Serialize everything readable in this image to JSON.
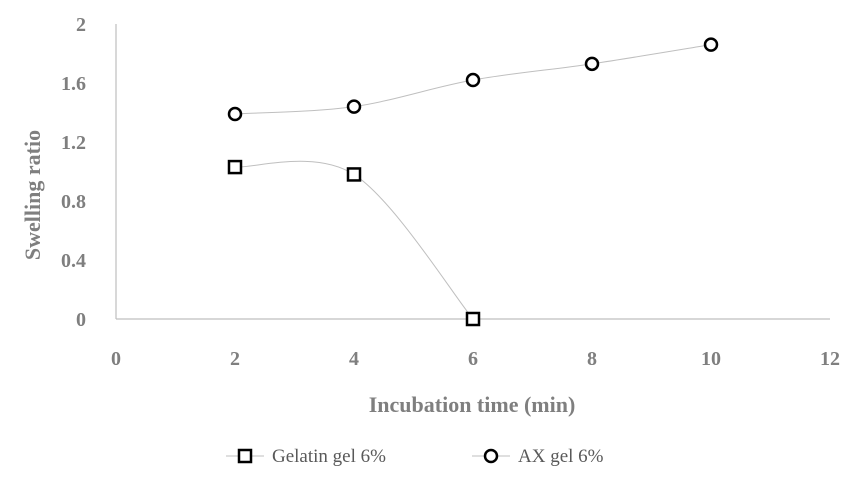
{
  "chart_data": {
    "type": "scatter",
    "xlabel": "Incubation time (min)",
    "ylabel": "Swelling ratio",
    "xlim": [
      0,
      12
    ],
    "ylim": [
      0,
      2
    ],
    "xticks": [
      0,
      2,
      4,
      6,
      8,
      10,
      12
    ],
    "yticks": [
      0,
      0.4,
      0.8,
      1.2,
      1.6,
      2
    ],
    "xtick_labels": [
      "0",
      "2",
      "4",
      "6",
      "8",
      "10",
      "12"
    ],
    "ytick_labels": [
      "0",
      "0.4",
      "0.8",
      "1.2",
      "1.6",
      "2"
    ],
    "grid": false,
    "legend_position": "bottom",
    "line_style": "smooth",
    "series": [
      {
        "name": "Gelatin gel 6%",
        "marker": "square",
        "x": [
          2,
          4,
          6
        ],
        "y": [
          1.03,
          0.98,
          0
        ]
      },
      {
        "name": "AX gel 6%",
        "marker": "circle",
        "x": [
          2,
          4,
          6,
          8,
          10
        ],
        "y": [
          1.39,
          1.44,
          1.62,
          1.73,
          1.86
        ]
      }
    ],
    "colors": {
      "marker": "#000000",
      "line": "#bfbfbf",
      "axis": "#bfbfbf",
      "text": "#7f7f7f"
    }
  }
}
